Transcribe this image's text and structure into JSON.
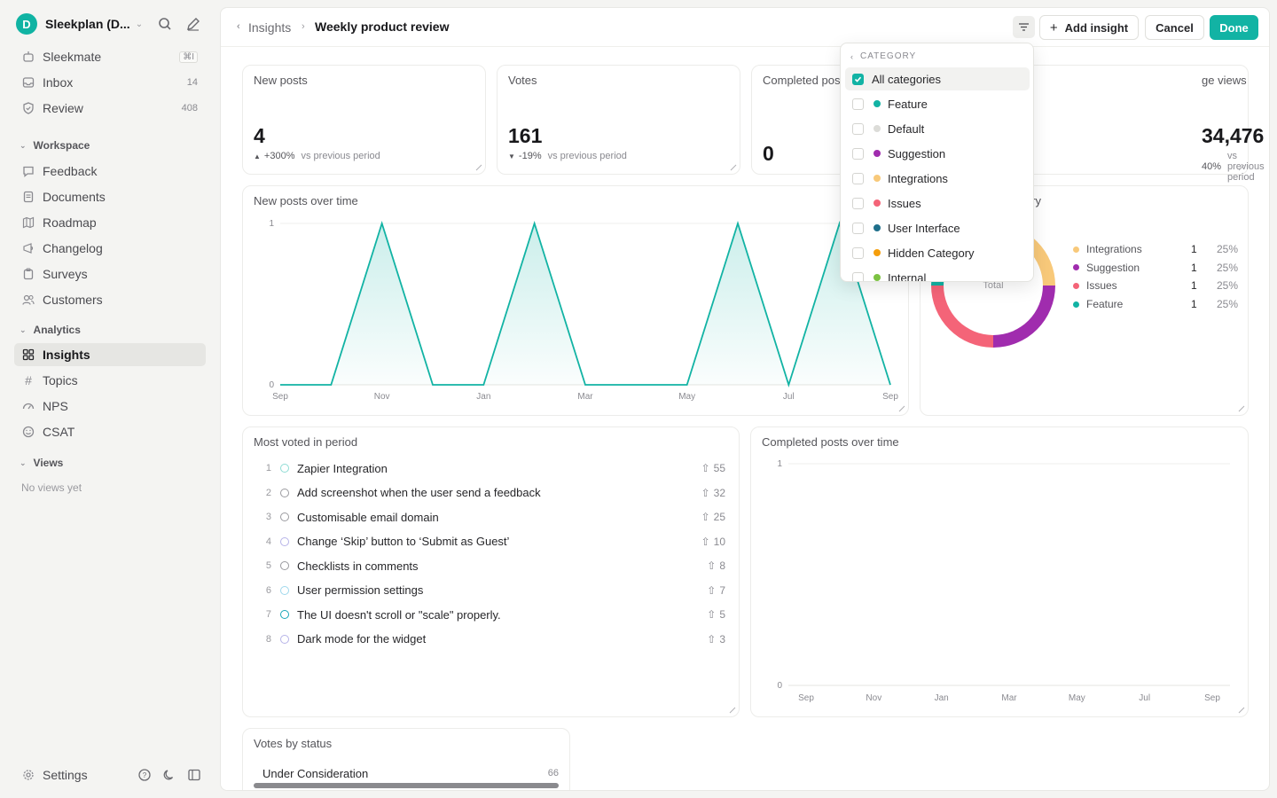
{
  "workspace": {
    "initial": "D",
    "name": "Sleekplan (D..."
  },
  "sidebar": {
    "top": [
      {
        "label": "Sleekmate",
        "badge": "⌘I"
      },
      {
        "label": "Inbox",
        "count": "14"
      },
      {
        "label": "Review",
        "count": "408"
      }
    ],
    "workspace_title": "Workspace",
    "workspace_items": [
      "Feedback",
      "Documents",
      "Roadmap",
      "Changelog",
      "Surveys",
      "Customers"
    ],
    "analytics_title": "Analytics",
    "analytics_items": [
      "Insights",
      "Topics",
      "NPS",
      "CSAT"
    ],
    "views_title": "Views",
    "no_views": "No views yet",
    "settings": "Settings"
  },
  "header": {
    "crumb_parent": "Insights",
    "crumb_current": "Weekly product review",
    "add_insight": "Add insight",
    "cancel": "Cancel",
    "done": "Done"
  },
  "stats": [
    {
      "title": "New posts",
      "value": "4",
      "delta": "+300%",
      "delta_dir": "up",
      "note": "vs previous period"
    },
    {
      "title": "Votes",
      "value": "161",
      "delta": "-19%",
      "delta_dir": "down",
      "note": "vs previous period"
    },
    {
      "title": "Completed pos",
      "value": "0"
    },
    {
      "title": "ge views",
      "value": "34,476",
      "delta": "40%",
      "note": "vs previous period"
    }
  ],
  "new_posts_chart": {
    "title": "New posts over time",
    "chart_data": {
      "type": "area",
      "x": [
        "Sep",
        "Oct",
        "Nov",
        "Dec",
        "Jan",
        "Feb",
        "Mar",
        "Apr",
        "May",
        "Jun",
        "Jul",
        "Aug",
        "Sep"
      ],
      "y": [
        0,
        0,
        1,
        0,
        0,
        1,
        0,
        0,
        0,
        1,
        0,
        1,
        0
      ],
      "x_ticks": [
        "Sep",
        "Nov",
        "Jan",
        "Mar",
        "May",
        "Jul",
        "Sep"
      ],
      "y_ticks": [
        "1",
        "0"
      ],
      "ylim": [
        0,
        1
      ],
      "color": "#12b3a4"
    }
  },
  "category_chart": {
    "title_fragment": "ory",
    "center_label": "Total",
    "chart_data": {
      "type": "pie",
      "categories": [
        "Integrations",
        "Suggestion",
        "Issues",
        "Feature"
      ],
      "values": [
        1,
        1,
        1,
        1
      ],
      "percents": [
        "25%",
        "25%",
        "25%",
        "25%"
      ],
      "colors": [
        "#f8c97a",
        "#a02cae",
        "#f46478",
        "#12b3a4"
      ]
    }
  },
  "most_voted": {
    "title": "Most voted in period",
    "items": [
      {
        "rank": "1",
        "title": "Zapier Integration",
        "votes": "55",
        "ring": "#8fdcd4"
      },
      {
        "rank": "2",
        "title": "Add screenshot when the user send a feedback",
        "votes": "32",
        "ring": "#9a9a9f"
      },
      {
        "rank": "3",
        "title": "Customisable email domain",
        "votes": "25",
        "ring": "#9a9a9f"
      },
      {
        "rank": "4",
        "title": "Change ‘Skip’ button to ‘Submit as Guest’",
        "votes": "10",
        "ring": "#b6b3e8"
      },
      {
        "rank": "5",
        "title": "Checklists in comments",
        "votes": "8",
        "ring": "#9a9a9f"
      },
      {
        "rank": "6",
        "title": "User permission settings",
        "votes": "7",
        "ring": "#9fd8ec"
      },
      {
        "rank": "7",
        "title": "The UI doesn't scroll or \"scale\" properly.",
        "votes": "5",
        "ring": "#18a6b8"
      },
      {
        "rank": "8",
        "title": "Dark mode for the widget",
        "votes": "3",
        "ring": "#b6b3e8"
      }
    ]
  },
  "completed_chart": {
    "title": "Completed posts over time",
    "chart_data": {
      "type": "line",
      "x": [
        "Sep",
        "Nov",
        "Jan",
        "Mar",
        "May",
        "Jul",
        "Sep"
      ],
      "y": [
        0,
        0,
        0,
        0,
        0,
        0,
        0
      ],
      "y_ticks": [
        "1",
        "0"
      ],
      "ylim": [
        0,
        1
      ]
    }
  },
  "votes_by_status": {
    "title": "Votes by status",
    "rows": [
      {
        "label": "Under Consideration",
        "count": "66"
      }
    ]
  },
  "dropdown": {
    "heading": "CATEGORY",
    "items": [
      {
        "label": "All categories",
        "checked": true
      },
      {
        "label": "Feature",
        "color": "#12b3a4"
      },
      {
        "label": "Default",
        "color": "#dcdcd8"
      },
      {
        "label": "Suggestion",
        "color": "#a02cae"
      },
      {
        "label": "Integrations",
        "color": "#f8c97a"
      },
      {
        "label": "Issues",
        "color": "#f46478"
      },
      {
        "label": "User Interface",
        "color": "#1f6f8b"
      },
      {
        "label": "Hidden Category",
        "color": "#f59e0b"
      },
      {
        "label": "Internal",
        "color": "#7cc242"
      }
    ]
  }
}
